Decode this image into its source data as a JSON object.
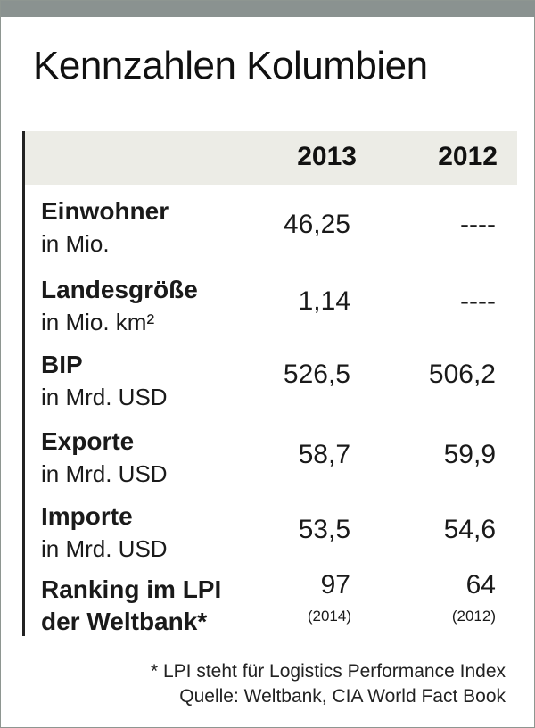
{
  "title": "Kennzahlen Kolumbien",
  "chart_data": {
    "type": "table",
    "title": "Kennzahlen Kolumbien",
    "columns": [
      "",
      "2013",
      "2012"
    ],
    "rows": [
      {
        "label": "Einwohner",
        "unit": "in Mio.",
        "v2013": "46,25",
        "v2012": "----"
      },
      {
        "label": "Landesgröße",
        "unit": "in Mio. km²",
        "v2013": "1,14",
        "v2012": "----"
      },
      {
        "label": "BIP",
        "unit": "in Mrd. USD",
        "v2013": "526,5",
        "v2012": "506,2"
      },
      {
        "label": "Exporte",
        "unit": "in Mrd. USD",
        "v2013": "58,7",
        "v2012": "59,9"
      },
      {
        "label": "Importe",
        "unit": "in Mrd. USD",
        "v2013": "53,5",
        "v2012": "54,6"
      },
      {
        "label": "Ranking im LPI",
        "unit": "der Weltbank*",
        "v2013": "97",
        "v2012": "64",
        "note2013": "(2014)",
        "note2012": "(2012)"
      }
    ]
  },
  "footnote": {
    "line1": "* LPI steht für Logistics Performance Index",
    "line2": "Quelle: Weltbank, CIA World Fact Book"
  }
}
